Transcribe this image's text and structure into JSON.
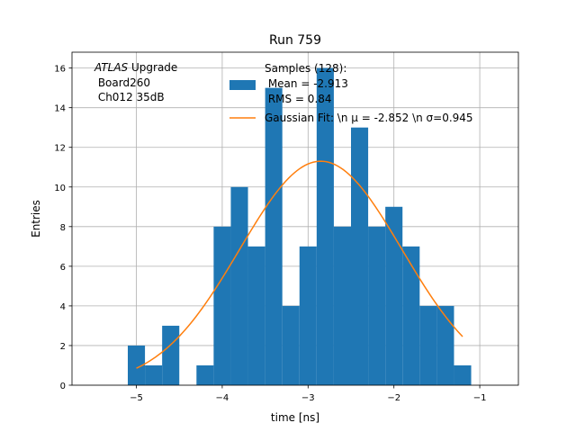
{
  "chart_data": {
    "type": "bar",
    "title": "Run 759",
    "xlabel": "time [ns]",
    "ylabel": "Entries",
    "xlim": [
      -5.75,
      -0.55
    ],
    "ylim": [
      0,
      16.8
    ],
    "xticks": [
      -5,
      -4,
      -3,
      -2,
      -1
    ],
    "xtick_labels": [
      "−5",
      "−4",
      "−3",
      "−2",
      "−1"
    ],
    "yticks": [
      0,
      2,
      4,
      6,
      8,
      10,
      12,
      14,
      16
    ],
    "ytick_labels": [
      "0",
      "2",
      "4",
      "6",
      "8",
      "10",
      "12",
      "14",
      "16"
    ],
    "grid": true,
    "bin_width": 0.2,
    "histogram": {
      "name": "Samples (128):\n Mean = -2.913\n RMS = 0.84",
      "color": "#1f77b4",
      "bin_edges": [
        -5.1,
        -4.9,
        -4.7,
        -4.5,
        -4.3,
        -4.1,
        -3.9,
        -3.7,
        -3.5,
        -3.3,
        -3.1,
        -2.9,
        -2.7,
        -2.5,
        -2.3,
        -2.1,
        -1.9,
        -1.7,
        -1.5,
        -1.3,
        -1.1
      ],
      "counts": [
        2,
        1,
        3,
        0,
        1,
        8,
        10,
        7,
        15,
        4,
        7,
        16,
        8,
        13,
        8,
        9,
        7,
        4,
        4,
        1
      ]
    },
    "fit": {
      "name": "Gaussian Fit: \\n μ = -2.852 \\n σ=0.945",
      "color": "#ff7f0e",
      "mu": -2.852,
      "sigma": 0.945,
      "amplitude": 11.3,
      "x_range": [
        -5.0,
        -1.2
      ]
    },
    "legend_location": "top-center",
    "annotation": {
      "line1_italic": "ATLAS",
      "line1_rest": " Upgrade",
      "line2": " Board260",
      "line3": " Ch012 35dB"
    }
  }
}
